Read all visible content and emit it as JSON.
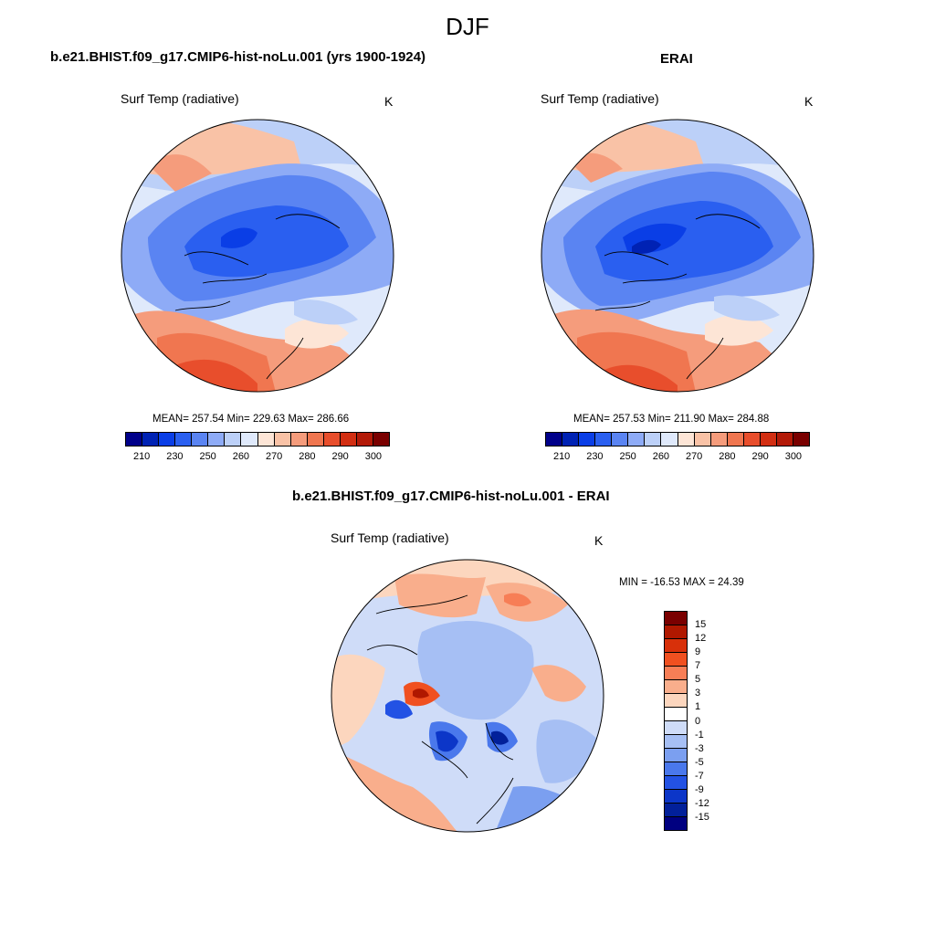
{
  "season": "DJF",
  "colors": {
    "abs_scale": [
      "#00008a",
      "#0022b4",
      "#0a3ee6",
      "#2a5ff0",
      "#5a84f2",
      "#8eabf6",
      "#bcd0f8",
      "#dfe9fb",
      "#fde5d6",
      "#f9c2a6",
      "#f59c7c",
      "#f07650",
      "#e84e2c",
      "#d22e12",
      "#b31a08",
      "#7a0000"
    ],
    "diff_scale": [
      "#7a0000",
      "#b01800",
      "#d8300a",
      "#f05020",
      "#f77e56",
      "#f9ae8c",
      "#fcd6be",
      "#ffffff",
      "#cfdcf8",
      "#a6bff4",
      "#7b9ff0",
      "#4a78ec",
      "#2352e4",
      "#0c36c8",
      "#02209a",
      "#000080"
    ]
  },
  "panels": [
    {
      "title": "b.e21.BHIST.f09_g17.CMIP6-hist-noLu.001 (yrs 1900-1924)",
      "variable": "Surf Temp (radiative)",
      "units": "K",
      "stats": "MEAN= 257.54  Min= 229.63  Max= 286.66",
      "colorbar_ticks": [
        "210",
        "230",
        "250",
        "260",
        "270",
        "280",
        "290",
        "300"
      ]
    },
    {
      "title": "ERAI",
      "variable": "Surf Temp (radiative)",
      "units": "K",
      "stats": "MEAN= 257.53  Min= 211.90  Max= 284.88",
      "colorbar_ticks": [
        "210",
        "230",
        "250",
        "260",
        "270",
        "280",
        "290",
        "300"
      ]
    },
    {
      "title": "b.e21.BHIST.f09_g17.CMIP6-hist-noLu.001 - ERAI",
      "variable": "Surf Temp (radiative)",
      "units": "K",
      "stats": "MIN = -16.53 MAX =  24.39",
      "colorbar_ticks": [
        "15",
        "12",
        "9",
        "7",
        "5",
        "3",
        "1",
        "0",
        "-1",
        "-3",
        "-5",
        "-7",
        "-9",
        "-12",
        "-15"
      ]
    }
  ]
}
